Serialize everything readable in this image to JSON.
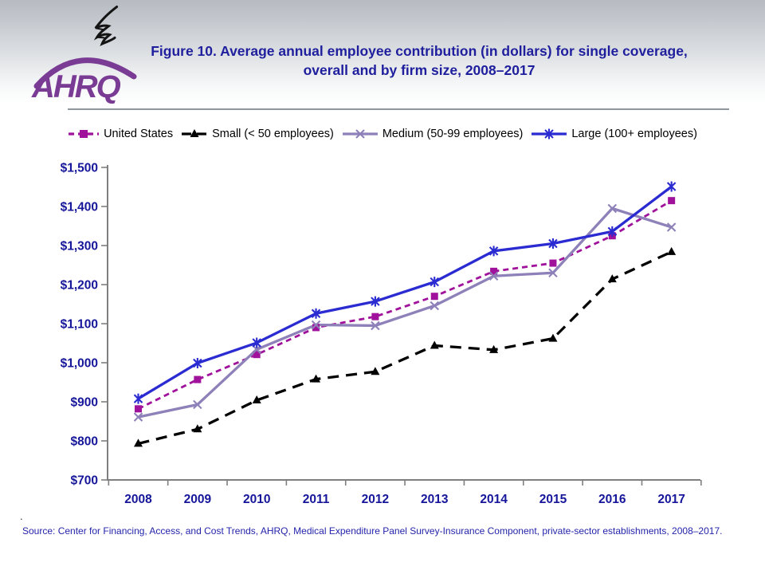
{
  "header": {
    "title": "Figure 10. Average annual employee contribution (in dollars) for single coverage, overall and by firm size, 2008–2017",
    "logo_text": "AHRQ",
    "logo_color": "#7a3b94",
    "title_color": "#1f1f9e"
  },
  "chart_data": {
    "type": "line",
    "title": "Figure 10. Average annual employee contribution (in dollars) for single coverage, overall and by firm size, 2008–2017",
    "categories": [
      "2008",
      "2009",
      "2010",
      "2011",
      "2012",
      "2013",
      "2014",
      "2015",
      "2016",
      "2017"
    ],
    "series": [
      {
        "name": "United States",
        "values": [
          882,
          957,
          1021,
          1090,
          1118,
          1170,
          1234,
          1255,
          1325,
          1415
        ],
        "color": "#a0129b",
        "line_style": "dashed",
        "marker": "square"
      },
      {
        "name": "Small (< 50 employees)",
        "values": [
          793,
          830,
          904,
          958,
          977,
          1044,
          1033,
          1062,
          1214,
          1284
        ],
        "color": "#000000",
        "line_style": "long-dash",
        "marker": "triangle"
      },
      {
        "name": "Medium (50-99 employees)",
        "values": [
          861,
          893,
          1034,
          1097,
          1095,
          1146,
          1222,
          1230,
          1395,
          1347
        ],
        "color": "#8e80b8",
        "line_style": "solid",
        "marker": "x"
      },
      {
        "name": "Large (100+ employees)",
        "values": [
          908,
          999,
          1051,
          1126,
          1157,
          1207,
          1286,
          1305,
          1336,
          1451
        ],
        "color": "#2b2bd2",
        "line_style": "solid",
        "marker": "asterisk"
      }
    ],
    "xlabel": "",
    "ylabel": "",
    "ylim": [
      700,
      1500
    ],
    "y_tick_step": 100,
    "y_tick_labels": [
      "$700",
      "$800",
      "$900",
      "$1,000",
      "$1,100",
      "$1,200",
      "$1,300",
      "$1,400",
      "$1,500"
    ],
    "grid": false,
    "legend_position": "top",
    "axis_label_color": "#16169a",
    "axis_line_color": "#7f7f7f"
  },
  "footer": {
    "dot": ".",
    "source_text": "Source: Center for Financing, Access, and Cost Trends, AHRQ, Medical Expenditure Panel Survey-Insurance Component, private-sector establishments, 2008–2017."
  }
}
